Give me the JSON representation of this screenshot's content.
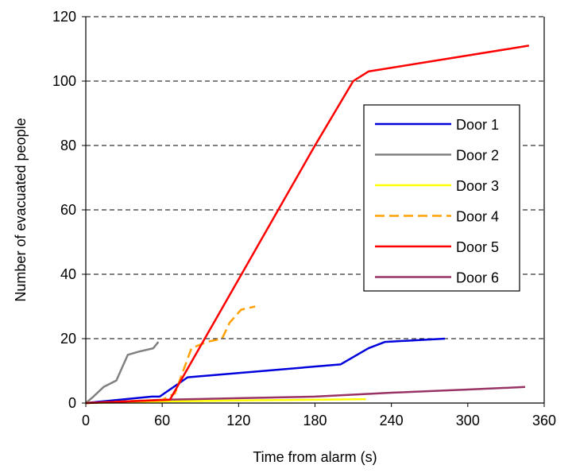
{
  "chart_data": {
    "type": "line",
    "title": "",
    "xlabel": "Time from alarm (s)",
    "ylabel": "Number of evacuated people",
    "xlim": [
      0,
      360
    ],
    "ylim": [
      0,
      120
    ],
    "xticks": [
      0,
      60,
      120,
      180,
      240,
      300,
      360
    ],
    "yticks": [
      0,
      20,
      40,
      60,
      80,
      100,
      120
    ],
    "grid": "horizontal dashed",
    "legend_position": "right",
    "series": [
      {
        "name": "Door 1",
        "color": "#0000dd",
        "style": "solid",
        "points": [
          [
            0,
            0
          ],
          [
            52,
            2
          ],
          [
            58,
            2
          ],
          [
            80,
            8
          ],
          [
            200,
            12
          ],
          [
            222,
            17
          ],
          [
            235,
            19
          ],
          [
            282,
            20
          ]
        ]
      },
      {
        "name": "Door 2",
        "color": "#808080",
        "style": "solid",
        "points": [
          [
            0,
            0
          ],
          [
            6,
            2
          ],
          [
            14,
            5
          ],
          [
            24,
            7
          ],
          [
            33,
            15
          ],
          [
            42,
            16
          ],
          [
            53,
            17
          ],
          [
            57,
            19
          ]
        ]
      },
      {
        "name": "Door 3",
        "color": "#ffff00",
        "style": "solid",
        "points": [
          [
            0,
            0
          ],
          [
            60,
            0.5
          ],
          [
            120,
            0.8
          ],
          [
            180,
            1
          ],
          [
            220,
            1.2
          ]
        ]
      },
      {
        "name": "Door 4",
        "color": "#ffa000",
        "style": "dashed",
        "points": [
          [
            0,
            0
          ],
          [
            60,
            1
          ],
          [
            70,
            3
          ],
          [
            83,
            17
          ],
          [
            95,
            19
          ],
          [
            107,
            20
          ],
          [
            113,
            25
          ],
          [
            122,
            29
          ],
          [
            133,
            30
          ]
        ]
      },
      {
        "name": "Door 5",
        "color": "#ff0000",
        "style": "solid",
        "points": [
          [
            0,
            0
          ],
          [
            66,
            1
          ],
          [
            180,
            80
          ],
          [
            210,
            100
          ],
          [
            222,
            103
          ],
          [
            348,
            111
          ]
        ]
      },
      {
        "name": "Door 6",
        "color": "#993366",
        "style": "solid",
        "points": [
          [
            0,
            0
          ],
          [
            60,
            1
          ],
          [
            120,
            1.5
          ],
          [
            180,
            2
          ],
          [
            240,
            3.2
          ],
          [
            300,
            4.2
          ],
          [
            345,
            5
          ]
        ]
      }
    ]
  }
}
